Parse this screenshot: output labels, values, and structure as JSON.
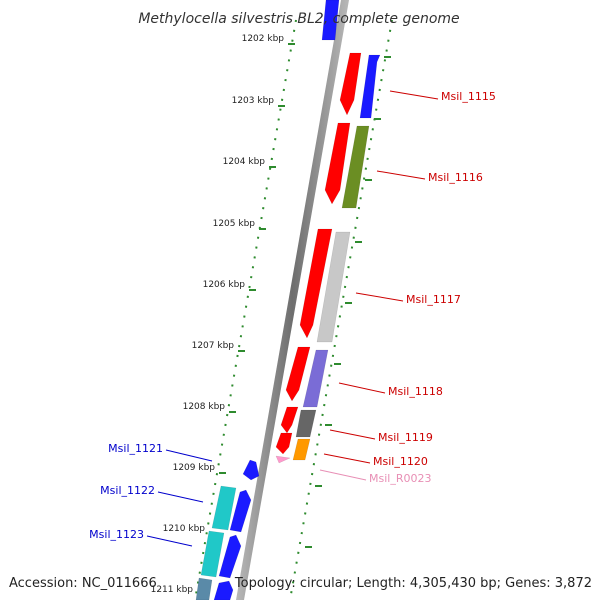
{
  "title": "Methylocella silvestris BL2, complete genome",
  "footer": {
    "accession": "Accession: NC_011666",
    "topology": "Topology: circular; Length: 4,305,430 bp; Genes: 3,872"
  },
  "ruler": {
    "labels": [
      "1202 kbp",
      "1203 kbp",
      "1204 kbp",
      "1205 kbp",
      "1206 kbp",
      "1207 kbp",
      "1208 kbp",
      "1209 kbp",
      "1210 kbp",
      "1211 kbp"
    ]
  },
  "colors": {
    "backbone": "#8c8c8c",
    "ruler_tick": "#2e8b2e",
    "label_red": "#cc0000",
    "label_blue": "#0000cc",
    "label_pink": "#e88fb5"
  },
  "gene_labels": {
    "right": [
      {
        "name": "Msil_1115",
        "color": "#cc0000"
      },
      {
        "name": "Msil_1116",
        "color": "#cc0000"
      },
      {
        "name": "Msil_1117",
        "color": "#cc0000"
      },
      {
        "name": "Msil_1118",
        "color": "#cc0000"
      },
      {
        "name": "Msil_1119",
        "color": "#cc0000"
      },
      {
        "name": "Msil_1120",
        "color": "#cc0000"
      },
      {
        "name": "Msil_R0023",
        "color": "#e88fb5"
      }
    ],
    "left": [
      {
        "name": "Msil_1121",
        "color": "#0000cc"
      },
      {
        "name": "Msil_1122",
        "color": "#0000cc"
      },
      {
        "name": "Msil_1123",
        "color": "#0000cc"
      }
    ]
  },
  "features": [
    {
      "name": "blue-top",
      "color": "#1a1aff"
    },
    {
      "name": "red-1115",
      "color": "#ff0000"
    },
    {
      "name": "blue-1115",
      "color": "#1a1aff"
    },
    {
      "name": "red-1116",
      "color": "#ff0000"
    },
    {
      "name": "olive-1116",
      "color": "#6b8e23"
    },
    {
      "name": "red-1117",
      "color": "#ff0000"
    },
    {
      "name": "grey-1117",
      "color": "#c8c8c8"
    },
    {
      "name": "red-1118",
      "color": "#ff0000"
    },
    {
      "name": "purple-1118",
      "color": "#7a6cd6"
    },
    {
      "name": "red-1119",
      "color": "#ff0000"
    },
    {
      "name": "darkgrey-1119",
      "color": "#666666"
    },
    {
      "name": "red-1120",
      "color": "#ff0000"
    },
    {
      "name": "orange-1120",
      "color": "#ff9900"
    },
    {
      "name": "pink-r0023",
      "color": "#ff99cc"
    },
    {
      "name": "blue-1121",
      "color": "#1a1aff"
    },
    {
      "name": "cyan-1122",
      "color": "#20c8c8"
    },
    {
      "name": "blue-1122",
      "color": "#1a1aff"
    },
    {
      "name": "cyan-1123",
      "color": "#20c8c8"
    },
    {
      "name": "blue-1123",
      "color": "#1a1aff"
    },
    {
      "name": "steel-bottom",
      "color": "#5a8aa8"
    },
    {
      "name": "blue-bottom",
      "color": "#1a1aff"
    }
  ]
}
